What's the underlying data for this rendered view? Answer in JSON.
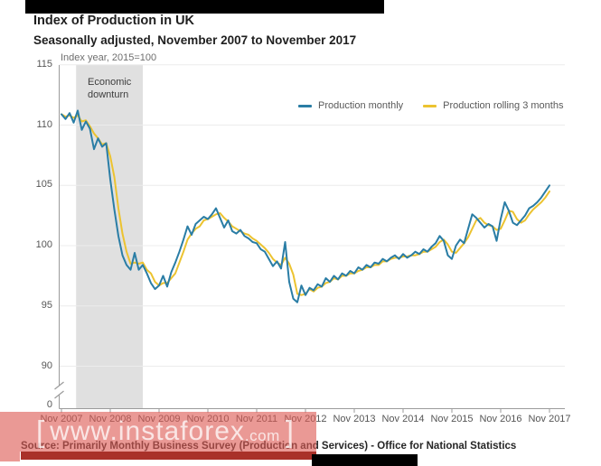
{
  "page": {
    "title": "Index of Production in UK",
    "subtitle": "Seasonally adjusted, November 2007 to November 2017",
    "source": "Source: Primarily Monthly Business Survey (Production and Services) - Office for National Statistics"
  },
  "watermark": {
    "bracket_left": "[",
    "text": "www.instaforex",
    "suffix": ".com",
    "bracket_right": "]"
  },
  "colors": {
    "monthly_line": "#2a7da5",
    "rolling_line": "#ecc330",
    "recession_band": "#e0e0e0",
    "gridline": "#ececec",
    "axis": "#9b9b9b",
    "watermark_pink": "rgba(221,90,84,0.62)",
    "watermark_red_bar": "#a93129"
  },
  "chart_data": {
    "type": "line",
    "title": "Index of Production in UK",
    "subtitle": "Seasonally adjusted, November 2007 to November 2017",
    "unit_note": "Index year, 2015=100",
    "grid": "horizontal",
    "legend_position": "top-right",
    "x_span": "Monthly, Nov 2007 to Nov 2017 (121 points)",
    "x_tick_labels": [
      "Nov 2007",
      "Nov 2008",
      "Nov 2009",
      "Nov 2010",
      "Nov 2011",
      "Nov 2012",
      "Nov 2013",
      "Nov 2014",
      "Nov 2015",
      "Nov 2016",
      "Nov 2017"
    ],
    "x_tick_month_indices": [
      0,
      12,
      24,
      36,
      48,
      60,
      72,
      84,
      96,
      108,
      120
    ],
    "y_ticks": [
      115,
      110,
      105,
      100,
      95,
      90
    ],
    "y_extra_tick": "0",
    "axis_break": true,
    "ylim_display": [
      90,
      115
    ],
    "annotation_band": {
      "label": "Economic downturn",
      "start_month_index": 3.6,
      "end_month_index": 20
    },
    "series": [
      {
        "name": "Production monthly",
        "color": "#2a7da5",
        "values": [
          110.9,
          110.5,
          111.0,
          110.2,
          111.2,
          109.6,
          110.3,
          109.7,
          108.0,
          108.9,
          108.2,
          108.5,
          105.5,
          103.0,
          100.8,
          99.2,
          98.4,
          98.0,
          99.4,
          98.0,
          98.4,
          97.7,
          96.9,
          96.4,
          96.7,
          97.5,
          96.6,
          97.8,
          98.6,
          99.5,
          100.5,
          101.6,
          100.9,
          101.8,
          102.1,
          102.4,
          102.2,
          102.6,
          103.1,
          102.3,
          101.5,
          102.1,
          101.2,
          101.0,
          101.3,
          100.8,
          100.6,
          100.3,
          100.2,
          99.7,
          99.5,
          98.9,
          98.3,
          98.7,
          98.1,
          100.3,
          97.0,
          95.6,
          95.3,
          96.7,
          95.9,
          96.5,
          96.3,
          96.8,
          96.6,
          97.3,
          97.0,
          97.5,
          97.2,
          97.7,
          97.5,
          97.9,
          97.7,
          98.2,
          98.0,
          98.4,
          98.2,
          98.6,
          98.5,
          98.9,
          98.7,
          99.0,
          99.2,
          98.9,
          99.3,
          99.0,
          99.2,
          99.5,
          99.3,
          99.7,
          99.5,
          99.9,
          100.2,
          100.8,
          100.4,
          99.2,
          98.9,
          100.0,
          100.5,
          100.2,
          101.4,
          102.6,
          102.3,
          101.9,
          101.5,
          101.8,
          101.6,
          100.4,
          102.2,
          103.6,
          102.9,
          101.9,
          101.7,
          102.1,
          102.5,
          103.1,
          103.3,
          103.6,
          104.0,
          104.5,
          105.0
        ]
      },
      {
        "name": "Production rolling 3 months",
        "color": "#ecc330",
        "derived": "3-month trailing mean of Production monthly",
        "values": [
          110.9,
          110.7,
          110.8,
          110.6,
          110.8,
          110.3,
          110.4,
          109.9,
          109.3,
          108.9,
          108.4,
          108.5,
          107.4,
          105.7,
          103.1,
          101.0,
          99.5,
          98.5,
          98.6,
          98.5,
          98.6,
          98.0,
          97.7,
          97.0,
          96.7,
          96.9,
          96.9,
          97.3,
          97.7,
          98.6,
          99.5,
          100.5,
          101.0,
          101.4,
          101.6,
          102.1,
          102.2,
          102.4,
          102.6,
          102.7,
          102.3,
          102.0,
          101.6,
          101.4,
          101.2,
          101.0,
          100.9,
          100.6,
          100.4,
          100.1,
          99.8,
          99.4,
          98.9,
          98.6,
          98.4,
          99.0,
          98.5,
          97.6,
          96.0,
          95.9,
          96.0,
          96.4,
          96.2,
          96.5,
          96.6,
          96.9,
          97.0,
          97.3,
          97.2,
          97.5,
          97.5,
          97.7,
          97.7,
          97.9,
          98.0,
          98.2,
          98.2,
          98.4,
          98.4,
          98.7,
          98.7,
          98.9,
          99.0,
          99.0,
          99.1,
          99.1,
          99.2,
          99.2,
          99.3,
          99.5,
          99.5,
          99.7,
          99.9,
          100.3,
          100.5,
          100.1,
          99.5,
          99.4,
          99.8,
          100.2,
          100.7,
          101.4,
          102.1,
          102.3,
          101.9,
          101.7,
          101.6,
          101.3,
          101.4,
          102.1,
          102.9,
          102.8,
          102.2,
          101.9,
          102.1,
          102.6,
          103.0,
          103.3,
          103.6,
          104.0,
          104.5
        ]
      }
    ]
  }
}
